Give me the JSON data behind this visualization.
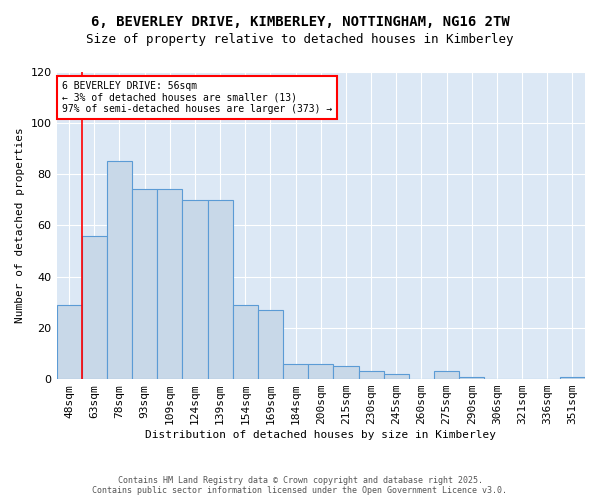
{
  "title_line1": "6, BEVERLEY DRIVE, KIMBERLEY, NOTTINGHAM, NG16 2TW",
  "title_line2": "Size of property relative to detached houses in Kimberley",
  "xlabel": "Distribution of detached houses by size in Kimberley",
  "ylabel": "Number of detached properties",
  "categories": [
    "48sqm",
    "63sqm",
    "78sqm",
    "93sqm",
    "109sqm",
    "124sqm",
    "139sqm",
    "154sqm",
    "169sqm",
    "184sqm",
    "200sqm",
    "215sqm",
    "230sqm",
    "245sqm",
    "260sqm",
    "275sqm",
    "290sqm",
    "306sqm",
    "321sqm",
    "336sqm",
    "351sqm"
  ],
  "values": [
    29,
    56,
    85,
    74,
    74,
    70,
    70,
    29,
    27,
    6,
    6,
    5,
    3,
    2,
    0,
    3,
    1,
    0,
    0,
    0,
    1
  ],
  "bar_color": "#c8d8e8",
  "bar_edge_color": "#5b9bd5",
  "annotation_text": "6 BEVERLEY DRIVE: 56sqm\n← 3% of detached houses are smaller (13)\n97% of semi-detached houses are larger (373) →",
  "annotation_box_color": "white",
  "annotation_box_edge_color": "red",
  "ylim": [
    0,
    120
  ],
  "yticks": [
    0,
    20,
    40,
    60,
    80,
    100,
    120
  ],
  "background_color": "#dce8f5",
  "footer_line1": "Contains HM Land Registry data © Crown copyright and database right 2025.",
  "footer_line2": "Contains public sector information licensed under the Open Government Licence v3.0."
}
